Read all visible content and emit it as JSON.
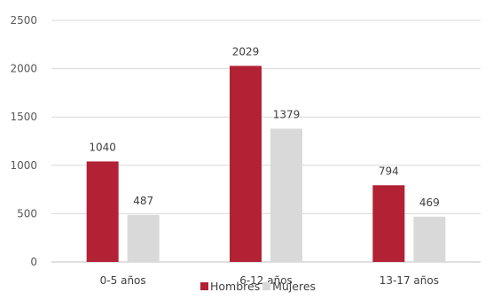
{
  "chart_data": {
    "type": "bar",
    "title": "",
    "xlabel": "",
    "ylabel": "",
    "categories": [
      "0-5 años",
      "6-12 años",
      "13-17 años"
    ],
    "series": [
      {
        "name": "Hombres",
        "values": [
          1040,
          2029,
          794
        ],
        "color": "#b22234"
      },
      {
        "name": "Mujeres",
        "values": [
          487,
          1379,
          469
        ],
        "color": "#d9d9d9"
      }
    ],
    "ylim": [
      0,
      2500
    ],
    "yticks": [
      "0",
      "500",
      "1000",
      "1500",
      "2000",
      "2500"
    ],
    "grid": true,
    "legend": "bottom",
    "data_labels": true
  }
}
